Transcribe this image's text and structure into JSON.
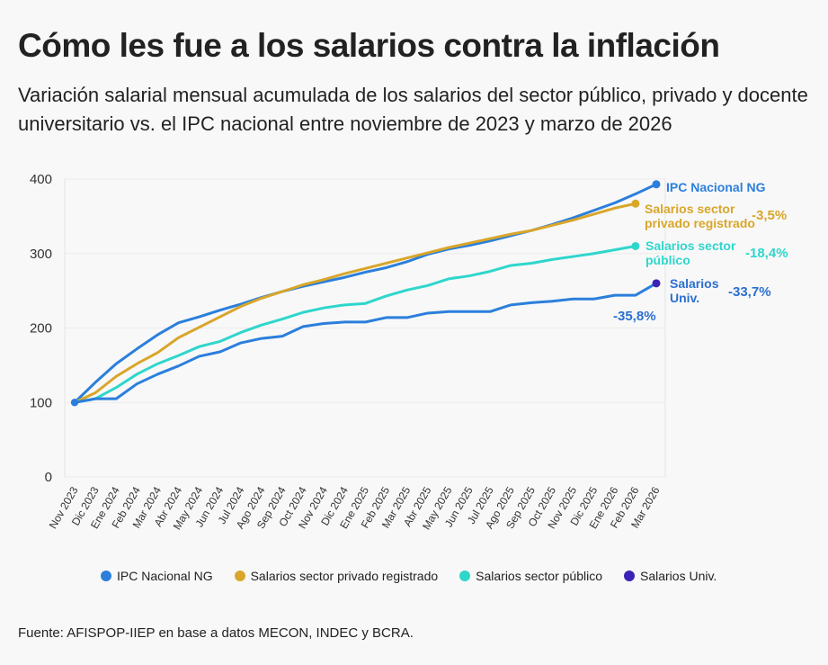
{
  "chart_data": {
    "type": "line",
    "title": "Cómo les fue a los salarios contra la inflación",
    "subtitle": "Variación salarial mensual acumulada de los salarios del sector público, privado y docente universitario vs. el IPC nacional entre noviembre de 2023 y marzo de 2026",
    "source": "Fuente: AFISPOP-IIEP en base a datos MECON, INDEC y BCRA.",
    "categories": [
      "Nov 2023",
      "Dic 2023",
      "Ene 2024",
      "Feb 2024",
      "Mar 2024",
      "Abr 2024",
      "May 2024",
      "Jun 2024",
      "Jul 2024",
      "Ago 2024",
      "Sep 2024",
      "Oct 2024",
      "Nov 2024",
      "Dic 2024",
      "Ene 2025",
      "Feb 2025",
      "Mar 2025",
      "Abr 2025",
      "May 2025",
      "Jun 2025",
      "Jul 2025",
      "Ago 2025",
      "Sep 2025",
      "Oct 2025",
      "Nov 2025",
      "Dic 2025",
      "Ene 2026",
      "Feb 2026",
      "Mar 2026"
    ],
    "series": [
      {
        "name": "IPC Nacional NG",
        "color": "#2b7fdc",
        "values": [
          100,
          127,
          152,
          172,
          191,
          207,
          215,
          224,
          232,
          241,
          249,
          256,
          262,
          268,
          275,
          281,
          289,
          299,
          306,
          311,
          317,
          324,
          331,
          339,
          348,
          358,
          368,
          380,
          393
        ]
      },
      {
        "name": "Salarios sector privado registrado",
        "color": "#d9a62a",
        "values": [
          100,
          113,
          135,
          152,
          167,
          187,
          201,
          215,
          229,
          240,
          249,
          258,
          265,
          273,
          280,
          287,
          294,
          301,
          308,
          314,
          320,
          326,
          331,
          338,
          345,
          353,
          361,
          367,
          null
        ]
      },
      {
        "name": "Salarios sector público",
        "color": "#2fd6cc",
        "values": [
          100,
          105,
          120,
          138,
          152,
          163,
          175,
          182,
          194,
          204,
          212,
          221,
          227,
          231,
          233,
          243,
          251,
          257,
          266,
          270,
          276,
          284,
          287,
          292,
          296,
          300,
          305,
          310,
          null
        ]
      },
      {
        "name": "Salarios Univ.",
        "color": "#3b22b5",
        "values": [
          100,
          105,
          105,
          125,
          138,
          149,
          162,
          168,
          180,
          186,
          189,
          202,
          206,
          208,
          208,
          214,
          214,
          220,
          222,
          222,
          222,
          231,
          234,
          236,
          239,
          239,
          244,
          244,
          260
        ]
      }
    ],
    "ylim": [
      0,
      400
    ],
    "yticks": [
      0,
      100,
      200,
      300,
      400
    ],
    "annotations": [
      {
        "text": "IPC Nacional NG",
        "color": "#2b7fdc"
      },
      {
        "text": "Salarios sector privado registrado",
        "color": "#d9a62a"
      },
      {
        "text": "-3,5%",
        "color": "#d9a62a"
      },
      {
        "text": "Salarios sector público",
        "color": "#2fd6cc"
      },
      {
        "text": "-18,4%",
        "color": "#2fd6cc"
      },
      {
        "text": "Salarios Univ.",
        "color": "#2b6fd0"
      },
      {
        "text": "-33,7%",
        "color": "#2b6fd0"
      },
      {
        "text": "-35,8%",
        "color": "#2b6fd0"
      }
    ]
  }
}
